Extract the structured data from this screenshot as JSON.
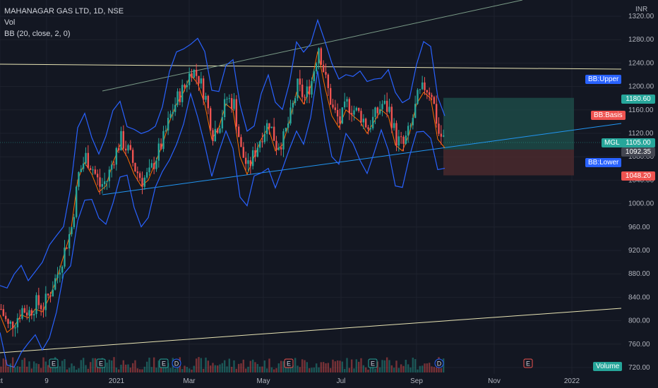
{
  "legend": {
    "title": "MAHANAGAR GAS LTD, 1D, NSE",
    "vol": "Vol",
    "bb": "BB (20, close, 2, 0)"
  },
  "currency": "INR",
  "tags": {
    "bb_upper": "BB:Upper",
    "bb_basis": "BB:Basis",
    "bb_lower": "BB:Lower",
    "symbol": "MGL",
    "volume": "Volume"
  },
  "price_labels": {
    "target": "1180.60",
    "last": "1105.00",
    "current": "1092.35",
    "stop": "1048.20"
  },
  "colors": {
    "background": "#131722",
    "up": "#26a69a",
    "down": "#ef5350",
    "bb_band": "#2962ff",
    "bb_basis": "#ff6d00",
    "trendline_yellow": "#e8e4b4",
    "trendline_blue": "#2196f3",
    "target_zone": "#1e4d4a",
    "stop_zone": "#4d2a2e"
  },
  "events": [
    {
      "label": "E",
      "type": "earnings"
    },
    {
      "label": "E",
      "type": "earnings"
    },
    {
      "label": "E",
      "type": "earnings"
    },
    {
      "label": "D",
      "type": "dividend"
    },
    {
      "label": "E",
      "type": "earnings"
    },
    {
      "label": "E",
      "type": "earnings"
    },
    {
      "label": "D",
      "type": "dividend"
    },
    {
      "label": "E",
      "type": "earnings"
    }
  ],
  "chart_data": {
    "type": "candlestick",
    "title": "MAHANAGAR GAS LTD, 1D, NSE",
    "ylim": [
      710,
      1330
    ],
    "y_ticks": [
      "1320.00",
      "1280.00",
      "1240.00",
      "1200.00",
      "1160.00",
      "1120.00",
      "1080.00",
      "1040.00",
      "1000.00",
      "960.00",
      "920.00",
      "880.00",
      "840.00",
      "800.00",
      "760.00",
      "720.00"
    ],
    "x_ticks": [
      "ct",
      "9",
      "2021",
      "Mar",
      "May",
      "Jul",
      "Sep",
      "Nov",
      "2022"
    ],
    "series": {
      "close_path": [
        [
          0,
          820
        ],
        [
          10,
          790
        ],
        [
          20,
          800
        ],
        [
          30,
          820
        ],
        [
          40,
          815
        ],
        [
          50,
          830
        ],
        [
          60,
          825
        ],
        [
          70,
          850
        ],
        [
          80,
          880
        ],
        [
          90,
          920
        ],
        [
          100,
          960
        ],
        [
          110,
          1050
        ],
        [
          120,
          1080
        ],
        [
          130,
          1060
        ],
        [
          140,
          1030
        ],
        [
          150,
          1040
        ],
        [
          160,
          1080
        ],
        [
          170,
          1110
        ],
        [
          180,
          1090
        ],
        [
          190,
          1060
        ],
        [
          200,
          1040
        ],
        [
          210,
          1050
        ],
        [
          220,
          1080
        ],
        [
          230,
          1110
        ],
        [
          240,
          1150
        ],
        [
          250,
          1180
        ],
        [
          260,
          1200
        ],
        [
          270,
          1230
        ],
        [
          280,
          1215
        ],
        [
          290,
          1180
        ],
        [
          300,
          1120
        ],
        [
          310,
          1140
        ],
        [
          320,
          1180
        ],
        [
          330,
          1170
        ],
        [
          340,
          1090
        ],
        [
          350,
          1060
        ],
        [
          360,
          1090
        ],
        [
          370,
          1120
        ],
        [
          380,
          1140
        ],
        [
          390,
          1100
        ],
        [
          400,
          1110
        ],
        [
          410,
          1150
        ],
        [
          420,
          1200
        ],
        [
          430,
          1180
        ],
        [
          440,
          1210
        ],
        [
          450,
          1270
        ],
        [
          460,
          1210
        ],
        [
          470,
          1160
        ],
        [
          480,
          1140
        ],
        [
          490,
          1170
        ],
        [
          500,
          1160
        ],
        [
          510,
          1150
        ],
        [
          520,
          1130
        ],
        [
          530,
          1150
        ],
        [
          540,
          1170
        ],
        [
          550,
          1160
        ],
        [
          560,
          1110
        ],
        [
          570,
          1100
        ],
        [
          580,
          1130
        ],
        [
          590,
          1180
        ],
        [
          600,
          1200
        ],
        [
          610,
          1190
        ],
        [
          620,
          1120
        ],
        [
          630,
          1105
        ]
      ]
    },
    "annotations": [
      "BB:Upper",
      "BB:Basis",
      "BB:Lower",
      "MGL 1105.00",
      "1092.35",
      "1180.60",
      "1048.20"
    ]
  }
}
